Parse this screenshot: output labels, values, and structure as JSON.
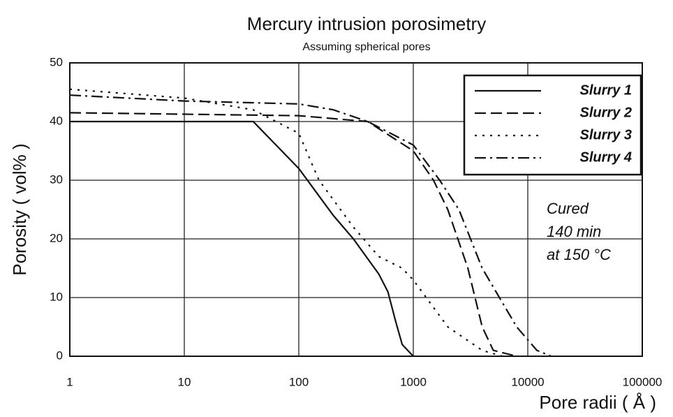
{
  "chart_data": {
    "type": "line",
    "title": "Mercury intrusion porosimetry",
    "subtitle": "Assuming spherical pores",
    "x_label": "Pore radii ( Å )",
    "y_label": "Porosity ( vol% )",
    "annotation": [
      "Cured",
      "140 min",
      "at 150 °C"
    ],
    "xscale": "log",
    "xlim": [
      1,
      100000
    ],
    "xticks": [
      1,
      10,
      100,
      1000,
      10000,
      100000
    ],
    "ylim": [
      0,
      50
    ],
    "yticks": [
      0,
      10,
      20,
      30,
      40,
      50
    ],
    "grid": true,
    "legend": "upper right",
    "series": [
      {
        "name": "Slurry 1",
        "color": "#111111",
        "dash": "solid",
        "x": [
          1,
          40,
          100,
          200,
          300,
          500,
          600,
          700,
          800,
          1000
        ],
        "values": [
          40,
          40,
          32,
          24,
          20,
          14,
          11,
          6,
          2,
          0
        ]
      },
      {
        "name": "Slurry 2",
        "color": "#111111",
        "dash": "dashed",
        "x": [
          1,
          100,
          400,
          1000,
          1500,
          2000,
          3000,
          4000,
          5000,
          8000
        ],
        "values": [
          41.5,
          41,
          40,
          35,
          30,
          25,
          15,
          5,
          1,
          0
        ]
      },
      {
        "name": "Slurry 3",
        "color": "#111111",
        "dash": "dotted",
        "x": [
          1,
          10,
          40,
          100,
          150,
          300,
          500,
          800,
          1000,
          2000,
          4000,
          6000
        ],
        "values": [
          45.5,
          44,
          42,
          38,
          30,
          22,
          17,
          15,
          13,
          5,
          1,
          0
        ]
      },
      {
        "name": "Slurry 4",
        "color": "#111111",
        "dash": "dashdot",
        "x": [
          1,
          10,
          100,
          200,
          400,
          1000,
          1700,
          2500,
          4000,
          8000,
          12000,
          16000
        ],
        "values": [
          44.5,
          43.5,
          43,
          42,
          40,
          36,
          30,
          25,
          15,
          5,
          1,
          0
        ]
      }
    ]
  }
}
